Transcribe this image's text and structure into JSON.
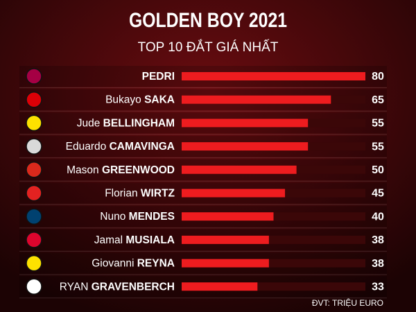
{
  "chart_data": {
    "type": "bar",
    "orientation": "horizontal",
    "title": "GOLDEN BOY 2021",
    "subtitle": "TOP 10 ĐẮT GIÁ NHẤT",
    "note": "ĐVT: TRIỆU EURO",
    "categories": [
      {
        "last": "PEDRI"
      },
      {
        "first": "Bukayo",
        "last": "SAKA"
      },
      {
        "first": "Jude",
        "last": "BELLINGHAM"
      },
      {
        "first": "Eduardo",
        "last": "CAMAVINGA"
      },
      {
        "first": "Mason",
        "last": "GREENWOOD"
      },
      {
        "first": "Florian",
        "last": "WIRTZ"
      },
      {
        "first": "Nuno",
        "last": "MENDES"
      },
      {
        "first": "Jamal",
        "last": "MUSIALA"
      },
      {
        "first": "Giovanni",
        "last": "REYNA"
      },
      {
        "first": "RYAN",
        "last": "GRAVENBERCH"
      }
    ],
    "values": [
      80,
      65,
      55,
      55,
      50,
      45,
      40,
      38,
      38,
      33
    ],
    "color": "#ee1c1f",
    "xlim": [
      0,
      80
    ]
  }
}
